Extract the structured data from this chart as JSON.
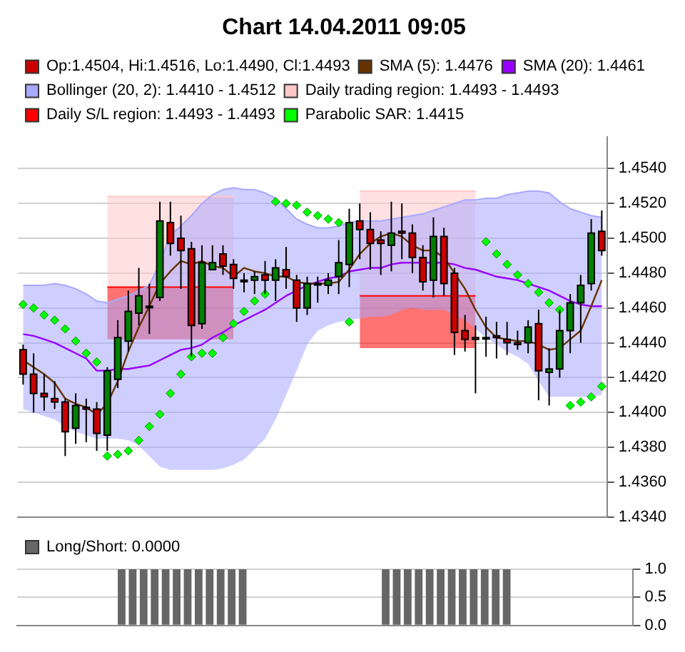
{
  "chart_data": [
    {
      "type": "candlestick",
      "title": "Chart 14.04.2011 09:05",
      "categories": [
        null,
        null,
        null,
        null,
        null,
        null,
        null,
        null,
        null,
        null,
        null,
        null,
        null,
        null,
        null,
        null,
        null,
        null,
        null,
        null,
        null,
        null,
        null,
        null,
        null,
        null,
        null,
        null,
        null,
        null,
        null,
        null,
        null,
        null,
        null,
        null,
        null,
        null,
        null,
        null,
        null,
        null,
        null,
        null,
        null,
        null,
        null,
        null,
        null,
        null,
        null,
        null,
        null,
        null,
        null,
        null
      ],
      "ylim": [
        1.434,
        1.4558
      ],
      "yticks": [
        {
          "value": 1.434,
          "label": "1.4340"
        },
        {
          "value": 1.436,
          "label": "1.4360"
        },
        {
          "value": 1.438,
          "label": "1.4380"
        },
        {
          "value": 1.44,
          "label": "1.4400"
        },
        {
          "value": 1.442,
          "label": "1.4420"
        },
        {
          "value": 1.444,
          "label": "1.4440"
        },
        {
          "value": 1.446,
          "label": "1.4460"
        },
        {
          "value": 1.448,
          "label": "1.4480"
        },
        {
          "value": 1.45,
          "label": "1.4500"
        },
        {
          "value": 1.452,
          "label": "1.4520"
        },
        {
          "value": 1.454,
          "label": "1.4540"
        }
      ],
      "grid": "y",
      "legend": "top",
      "tick_labels": "y",
      "series": [
        {
          "type": "candlestick",
          "name": "Op:1.4504, Hi:1.4516, Lo:1.4490, Cl:1.4493",
          "color": "#cc0000",
          "ohlc": [
            [
              1.4436,
              1.4439,
              1.4416,
              1.4422
            ],
            [
              1.4422,
              1.4434,
              1.44,
              1.4411
            ],
            [
              1.4411,
              1.4422,
              1.4401,
              1.4409
            ],
            [
              1.4408,
              1.4418,
              1.4402,
              1.4406
            ],
            [
              1.4406,
              1.4408,
              1.4375,
              1.4389
            ],
            [
              1.4391,
              1.4411,
              1.4382,
              1.4404
            ],
            [
              1.4403,
              1.4408,
              1.4383,
              1.4402
            ],
            [
              1.4402,
              1.4406,
              1.4378,
              1.4388
            ],
            [
              1.4387,
              1.4426,
              1.4378,
              1.4424
            ],
            [
              1.4419,
              1.4453,
              1.4414,
              1.4443
            ],
            [
              1.4441,
              1.447,
              1.4435,
              1.4458
            ],
            [
              1.4457,
              1.4483,
              1.445,
              1.4467
            ],
            [
              1.4461,
              1.4474,
              1.4445,
              1.4461
            ],
            [
              1.4466,
              1.4521,
              1.4464,
              1.451
            ],
            [
              1.4509,
              1.4521,
              1.449,
              1.4497
            ],
            [
              1.45,
              1.4513,
              1.4471,
              1.4493
            ],
            [
              1.4494,
              1.4498,
              1.4432,
              1.445
            ],
            [
              1.4451,
              1.4496,
              1.4448,
              1.4486
            ],
            [
              1.4482,
              1.4496,
              1.4482,
              1.4486
            ],
            [
              1.4491,
              1.4496,
              1.4479,
              1.4484
            ],
            [
              1.4485,
              1.4488,
              1.4471,
              1.4477
            ],
            [
              1.4476,
              1.448,
              1.4469,
              1.4475
            ],
            [
              1.4476,
              1.4481,
              1.4468,
              1.4478
            ],
            [
              1.4479,
              1.4487,
              1.4468,
              1.4476
            ],
            [
              1.4476,
              1.4488,
              1.4464,
              1.4483
            ],
            [
              1.4482,
              1.4495,
              1.4471,
              1.4478
            ],
            [
              1.4476,
              1.4479,
              1.4452,
              1.446
            ],
            [
              1.446,
              1.4478,
              1.4456,
              1.4474
            ],
            [
              1.4474,
              1.4478,
              1.4463,
              1.4474
            ],
            [
              1.4473,
              1.448,
              1.4468,
              1.4476
            ],
            [
              1.4478,
              1.4499,
              1.4468,
              1.4486
            ],
            [
              1.4485,
              1.4517,
              1.4472,
              1.4509
            ],
            [
              1.451,
              1.452,
              1.4488,
              1.4505
            ],
            [
              1.4505,
              1.4515,
              1.4482,
              1.4497
            ],
            [
              1.4499,
              1.4504,
              1.4479,
              1.4497
            ],
            [
              1.4496,
              1.4521,
              1.4481,
              1.4503
            ],
            [
              1.4504,
              1.452,
              1.4488,
              1.4503
            ],
            [
              1.4503,
              1.4508,
              1.448,
              1.4489
            ],
            [
              1.4489,
              1.4496,
              1.447,
              1.4475
            ],
            [
              1.4476,
              1.4512,
              1.4466,
              1.4501
            ],
            [
              1.4501,
              1.4506,
              1.4467,
              1.4474
            ],
            [
              1.448,
              1.4483,
              1.4433,
              1.4446
            ],
            [
              1.4447,
              1.4456,
              1.4435,
              1.4442
            ],
            [
              1.4443,
              1.445,
              1.4411,
              1.4442
            ],
            [
              1.4443,
              1.4455,
              1.4432,
              1.4443
            ],
            [
              1.4444,
              1.4452,
              1.4431,
              1.4443
            ],
            [
              1.4442,
              1.4452,
              1.4433,
              1.444
            ],
            [
              1.444,
              1.4447,
              1.4436,
              1.4439
            ],
            [
              1.444,
              1.4453,
              1.4434,
              1.4449
            ],
            [
              1.4451,
              1.4459,
              1.4407,
              1.4424
            ],
            [
              1.4423,
              1.4437,
              1.4404,
              1.4425
            ],
            [
              1.4425,
              1.4459,
              1.442,
              1.4447
            ],
            [
              1.4447,
              1.4468,
              1.4434,
              1.4463
            ],
            [
              1.4463,
              1.4479,
              1.444,
              1.4473
            ],
            [
              1.4474,
              1.4511,
              1.447,
              1.4503
            ],
            [
              1.4504,
              1.4516,
              1.449,
              1.4493
            ]
          ],
          "colors": [
            "#cc0000",
            "#cc0000",
            "#cc0000",
            "#cc0000",
            "#cc0000",
            "#008000",
            "#cc0000",
            "#cc0000",
            "#008000",
            "#008000",
            "#008000",
            "#008000",
            "#008000",
            "#008000",
            "#cc0000",
            "#cc0000",
            "#cc0000",
            "#008000",
            "#008000",
            "#cc0000",
            "#cc0000",
            "#cc0000",
            "#008000",
            "#cc0000",
            "#008000",
            "#cc0000",
            "#cc0000",
            "#008000",
            "#008000",
            "#008000",
            "#008000",
            "#008000",
            "#cc0000",
            "#cc0000",
            "#cc0000",
            "#008000",
            "#cc0000",
            "#cc0000",
            "#cc0000",
            "#008000",
            "#cc0000",
            "#cc0000",
            "#cc0000",
            "#cc0000",
            "#008000",
            "#cc0000",
            "#cc0000",
            "#cc0000",
            "#008000",
            "#cc0000",
            "#008000",
            "#008000",
            "#008000",
            "#008000",
            "#008000",
            "#cc0000"
          ]
        },
        {
          "type": "line",
          "name": "SMA (5): 1.4476",
          "color": "#663300",
          "values": [
            1.443,
            1.4426,
            1.4422,
            1.4417,
            1.4408,
            1.4405,
            1.4403,
            1.4399,
            1.4405,
            1.4418,
            1.4435,
            1.4449,
            1.4461,
            1.4474,
            1.4481,
            1.4487,
            1.4485,
            1.4487,
            1.4484,
            1.4483,
            1.4478,
            1.4483,
            1.4481,
            1.448,
            1.4478,
            1.4478,
            1.4475,
            1.4474,
            1.4474,
            1.4474,
            1.4475,
            1.4482,
            1.4491,
            1.4497,
            1.4501,
            1.4503,
            1.4501,
            1.4496,
            1.4493,
            1.4493,
            1.4489,
            1.448,
            1.4471,
            1.4459,
            1.4449,
            1.4443,
            1.4442,
            1.4441,
            1.4441,
            1.4439,
            1.4436,
            1.4437,
            1.4442,
            1.4447,
            1.4461,
            1.4476
          ]
        },
        {
          "type": "line",
          "name": "SMA (20): 1.4461",
          "color": "#9900ff",
          "values": [
            1.4445,
            1.4444,
            1.4442,
            1.444,
            1.4437,
            1.4434,
            1.4431,
            1.4424,
            1.4424,
            1.4425,
            1.4425,
            1.4426,
            1.4427,
            1.443,
            1.4433,
            1.4436,
            1.4437,
            1.4439,
            1.4443,
            1.4446,
            1.445,
            1.4453,
            1.4456,
            1.4459,
            1.4463,
            1.4467,
            1.447,
            1.4473,
            1.4475,
            1.4477,
            1.4478,
            1.4481,
            1.4482,
            1.4483,
            1.4483,
            1.4485,
            1.4486,
            1.4486,
            1.4486,
            1.4486,
            1.4486,
            1.4485,
            1.4483,
            1.4482,
            1.448,
            1.4478,
            1.4477,
            1.4476,
            1.4474,
            1.4472,
            1.447,
            1.4467,
            1.4464,
            1.4462,
            1.4461,
            1.4461
          ]
        },
        {
          "type": "line",
          "name": "Bollinger (20, 2): 1.4410 - 1.4512",
          "color": "#a8a8ff",
          "lower": [
            1.4402,
            1.44,
            1.4398,
            1.4396,
            1.4392,
            1.4389,
            1.4387,
            1.4385,
            1.4385,
            1.4385,
            1.4384,
            1.4381,
            1.4375,
            1.4369,
            1.4367,
            1.4367,
            1.4367,
            1.4367,
            1.4367,
            1.4368,
            1.437,
            1.4373,
            1.4379,
            1.4385,
            1.4396,
            1.441,
            1.4424,
            1.4439,
            1.4447,
            1.445,
            1.4452,
            1.4453,
            1.4454,
            1.4455,
            1.4455,
            1.4456,
            1.4459,
            1.446,
            1.4459,
            1.4459,
            1.4459,
            1.4456,
            1.4453,
            1.4448,
            1.4443,
            1.4439,
            1.4435,
            1.4432,
            1.4428,
            1.4418,
            1.4409,
            1.4409,
            1.4409,
            1.4409,
            1.4409,
            1.441
          ],
          "values": [
            1.4473,
            1.4473,
            1.4473,
            1.4474,
            1.4473,
            1.4471,
            1.4468,
            1.4464,
            1.4463,
            1.4465,
            1.4467,
            1.447,
            1.4473,
            1.4486,
            1.4502,
            1.4507,
            1.4513,
            1.452,
            1.4525,
            1.4528,
            1.4529,
            1.4528,
            1.4528,
            1.4526,
            1.4523,
            1.4517,
            1.4511,
            1.4508,
            1.4506,
            1.4506,
            1.4507,
            1.4509,
            1.451,
            1.451,
            1.451,
            1.4511,
            1.4512,
            1.4513,
            1.4514,
            1.4516,
            1.4518,
            1.452,
            1.4522,
            1.4522,
            1.4523,
            1.4523,
            1.4525,
            1.4526,
            1.4527,
            1.4527,
            1.4526,
            1.4521,
            1.4517,
            1.4515,
            1.4513,
            1.4512
          ],
          "upper": [
            1.4473,
            1.4473,
            1.4473,
            1.4474,
            1.4473,
            1.4471,
            1.4468,
            1.4464,
            1.4463,
            1.4465,
            1.4467,
            1.447,
            1.4473,
            1.4486,
            1.4502,
            1.4507,
            1.4513,
            1.452,
            1.4525,
            1.4528,
            1.4529,
            1.4528,
            1.4528,
            1.4526,
            1.4523,
            1.4517,
            1.4511,
            1.4508,
            1.4506,
            1.4506,
            1.4507,
            1.4509,
            1.451,
            1.451,
            1.451,
            1.4511,
            1.4512,
            1.4513,
            1.4514,
            1.4516,
            1.4518,
            1.452,
            1.4522,
            1.4522,
            1.4523,
            1.4523,
            1.4525,
            1.4526,
            1.4527,
            1.4527,
            1.4526,
            1.4521,
            1.4517,
            1.4515,
            1.4513,
            1.4512
          ]
        },
        {
          "type": "line",
          "name": "Daily trading region: 1.4493 - 1.4493",
          "color": "#ffc8c8",
          "lower": [
            null,
            null,
            null,
            null,
            null,
            null,
            null,
            null,
            1.4472,
            1.4472,
            1.4472,
            1.4472,
            1.4472,
            1.4472,
            1.4472,
            1.4472,
            1.4472,
            1.4472,
            1.4472,
            1.4472,
            1.4472,
            null,
            null,
            null,
            null,
            null,
            null,
            null,
            null,
            null,
            null,
            null,
            1.4467,
            1.4467,
            1.4467,
            1.4467,
            1.4467,
            1.4467,
            1.4467,
            1.4467,
            1.4467,
            1.4467,
            1.4467,
            1.4467,
            null,
            null,
            null,
            null,
            null,
            null,
            null,
            null,
            null,
            null,
            null,
            null
          ],
          "values": [
            null,
            null,
            null,
            null,
            null,
            null,
            null,
            null,
            1.4524,
            1.4524,
            1.4524,
            1.4524,
            1.4524,
            1.4524,
            1.4524,
            1.4524,
            1.4524,
            1.4524,
            1.4524,
            1.4524,
            1.4524,
            null,
            null,
            null,
            null,
            null,
            null,
            null,
            null,
            null,
            null,
            null,
            1.4527,
            1.4527,
            1.4527,
            1.4527,
            1.4527,
            1.4527,
            1.4527,
            1.4527,
            1.4527,
            1.4527,
            1.4527,
            1.4527,
            null,
            null,
            null,
            null,
            null,
            null,
            null,
            null,
            null,
            null,
            null,
            null
          ],
          "upper": [
            null,
            null,
            null,
            null,
            null,
            null,
            null,
            null,
            1.4524,
            1.4524,
            1.4524,
            1.4524,
            1.4524,
            1.4524,
            1.4524,
            1.4524,
            1.4524,
            1.4524,
            1.4524,
            1.4524,
            1.4524,
            null,
            null,
            null,
            null,
            null,
            null,
            null,
            null,
            null,
            null,
            null,
            1.4527,
            1.4527,
            1.4527,
            1.4527,
            1.4527,
            1.4527,
            1.4527,
            1.4527,
            1.4527,
            1.4527,
            1.4527,
            1.4527,
            null,
            null,
            null,
            null,
            null,
            null,
            null,
            null,
            null,
            null,
            null,
            null
          ]
        },
        {
          "type": "line",
          "name": "Daily S/L region: 1.4493 - 1.4493",
          "color": "#ff0000",
          "lower": [
            null,
            null,
            null,
            null,
            null,
            null,
            null,
            null,
            1.4442,
            1.4442,
            1.4442,
            1.4442,
            1.4442,
            1.4442,
            1.4442,
            1.4442,
            1.4442,
            1.4442,
            1.4442,
            1.4442,
            1.4442,
            null,
            null,
            null,
            null,
            null,
            null,
            null,
            null,
            null,
            null,
            null,
            1.4437,
            1.4437,
            1.4437,
            1.4437,
            1.4437,
            1.4437,
            1.4437,
            1.4437,
            1.4437,
            1.4437,
            1.4437,
            1.4437,
            null,
            null,
            null,
            null,
            null,
            null,
            null,
            null,
            null,
            null,
            null,
            null
          ],
          "values": [
            null,
            null,
            null,
            null,
            null,
            null,
            null,
            null,
            1.4472,
            1.4472,
            1.4472,
            1.4472,
            1.4472,
            1.4472,
            1.4472,
            1.4472,
            1.4472,
            1.4472,
            1.4472,
            1.4472,
            1.4472,
            null,
            null,
            null,
            null,
            null,
            null,
            null,
            null,
            null,
            null,
            null,
            1.4467,
            1.4467,
            1.4467,
            1.4467,
            1.4467,
            1.4467,
            1.4467,
            1.4467,
            1.4467,
            1.4467,
            1.4467,
            1.4467,
            null,
            null,
            null,
            null,
            null,
            null,
            null,
            null,
            null,
            null,
            null,
            null
          ],
          "upper": [
            null,
            null,
            null,
            null,
            null,
            null,
            null,
            null,
            1.4472,
            1.4472,
            1.4472,
            1.4472,
            1.4472,
            1.4472,
            1.4472,
            1.4472,
            1.4472,
            1.4472,
            1.4472,
            1.4472,
            1.4472,
            null,
            null,
            null,
            null,
            null,
            null,
            null,
            null,
            null,
            null,
            null,
            1.4467,
            1.4467,
            1.4467,
            1.4467,
            1.4467,
            1.4467,
            1.4467,
            1.4467,
            1.4467,
            1.4467,
            1.4467,
            1.4467,
            null,
            null,
            null,
            null,
            null,
            null,
            null,
            null,
            null,
            null,
            null,
            null
          ]
        },
        {
          "type": "scatter",
          "name": "Parabolic SAR: 1.4415",
          "color": "#00ff00",
          "marker": "diamond",
          "values": [
            1.4462,
            1.446,
            1.4456,
            1.4453,
            1.4448,
            1.4441,
            1.4434,
            1.4429,
            1.4375,
            1.4376,
            1.4378,
            1.4384,
            1.4392,
            1.4399,
            1.4411,
            1.4422,
            1.4432,
            1.4434,
            1.4434,
            1.4443,
            1.4451,
            1.4458,
            1.4464,
            1.4468,
            1.4521,
            1.452,
            1.4519,
            1.4515,
            1.4513,
            1.4511,
            1.4509,
            1.4452,
            null,
            null,
            null,
            null,
            null,
            null,
            null,
            null,
            null,
            null,
            null,
            null,
            1.4498,
            1.4491,
            1.4485,
            1.4479,
            1.4474,
            1.4469,
            1.4463,
            1.4459,
            1.4404,
            1.4406,
            1.4409,
            1.4415
          ]
        }
      ]
    },
    {
      "type": "bar",
      "categories": [
        null,
        null,
        null,
        null,
        null,
        null,
        null,
        null,
        null,
        null,
        null,
        null,
        null,
        null,
        null,
        null,
        null,
        null,
        null,
        null,
        null,
        null,
        null,
        null,
        null,
        null,
        null,
        null,
        null,
        null,
        null,
        null,
        null,
        null,
        null,
        null,
        null,
        null,
        null,
        null,
        null,
        null,
        null,
        null,
        null,
        null,
        null,
        null,
        null,
        null,
        null,
        null,
        null,
        null,
        null,
        null
      ],
      "ylim": [
        0,
        1
      ],
      "yticks": [
        {
          "value": 0,
          "label": "0.0"
        },
        {
          "value": 0.5,
          "label": "0.5"
        },
        {
          "value": 1,
          "label": "1.0"
        }
      ],
      "grid": "y",
      "legend": "top",
      "tick_labels": "y",
      "series": [
        {
          "name": "Long/Short: 0.0000",
          "color": "#666666",
          "values": [
            0,
            0,
            0,
            0,
            0,
            0,
            0,
            0,
            0,
            1,
            1,
            1,
            1,
            1,
            1,
            1,
            1,
            1,
            1,
            1,
            1,
            0,
            0,
            0,
            0,
            0,
            0,
            0,
            0,
            0,
            0,
            0,
            0,
            1,
            1,
            1,
            1,
            1,
            1,
            1,
            1,
            1,
            1,
            1,
            1,
            0,
            0,
            0,
            0,
            0,
            0,
            0,
            0,
            0,
            0,
            0
          ]
        }
      ]
    }
  ]
}
